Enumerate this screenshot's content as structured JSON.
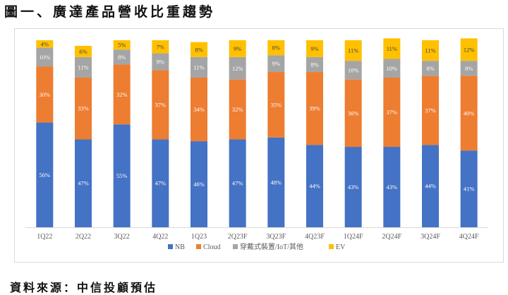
{
  "page": {
    "title": "圖一、廣達產品營收比重趨勢",
    "source": "資料來源：中信投顧預估"
  },
  "chart_data": {
    "type": "bar",
    "stacked": true,
    "percent_stacked": true,
    "categories": [
      "1Q22",
      "2Q22",
      "3Q22",
      "4Q22",
      "1Q23",
      "2Q23F",
      "3Q23F",
      "4Q23F",
      "1Q24F",
      "2Q24F",
      "3Q24F",
      "4Q24F"
    ],
    "series": [
      {
        "name": "NB",
        "color": "#4472c4",
        "label_color": "#ffffff",
        "values": [
          56,
          47,
          55,
          47,
          46,
          47,
          48,
          44,
          43,
          43,
          44,
          41
        ]
      },
      {
        "name": "Cloud",
        "color": "#ed7d31",
        "label_color": "#ffffff",
        "values": [
          30,
          33,
          32,
          37,
          34,
          32,
          35,
          39,
          36,
          37,
          37,
          40
        ]
      },
      {
        "name": "穿戴式裝置/IoT/其他",
        "color": "#a5a5a5",
        "label_color": "#ffffff",
        "values": [
          10,
          11,
          8,
          9,
          11,
          12,
          9,
          8,
          10,
          10,
          8,
          8
        ]
      },
      {
        "name": "EV",
        "color": "#ffc000",
        "label_color": "#404040",
        "values": [
          4,
          6,
          5,
          7,
          8,
          9,
          8,
          9,
          11,
          11,
          11,
          12
        ]
      }
    ],
    "ylim": [
      0,
      100
    ],
    "legend_position": "bottom",
    "grid": false
  }
}
